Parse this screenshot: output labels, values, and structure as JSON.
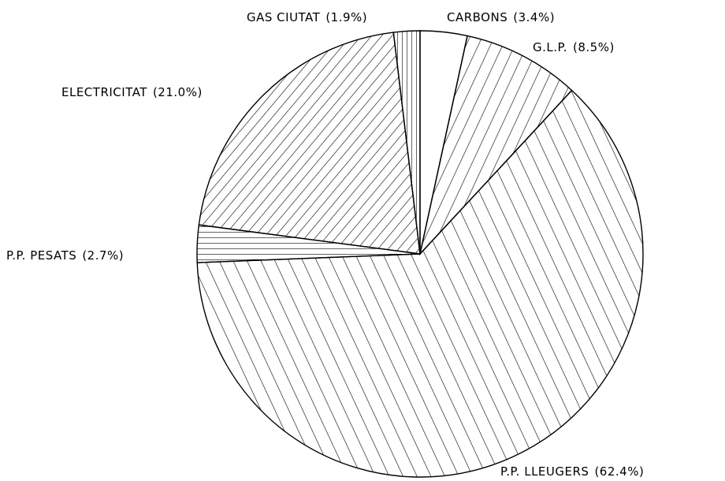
{
  "chart_data": {
    "type": "pie",
    "categories": [
      "CARBONS",
      "G.L.P.",
      "P.P. LLEUGERS",
      "P.P. PESATS",
      "ELECTRICITAT",
      "GAS CIUTAT"
    ],
    "values": [
      3.4,
      8.5,
      62.4,
      2.7,
      21.0,
      1.9
    ],
    "value_labels": [
      "(3.4%)",
      "(8.5%)",
      "(62.4%)",
      "(2.7%)",
      "(21.0%)",
      "(1.9%)"
    ],
    "patterns": [
      "none",
      "diag-up",
      "diag-down",
      "horizontal",
      "diag-up-dense",
      "vertical"
    ],
    "color": "#000000",
    "start_angle": 0,
    "direction": "clockwise"
  }
}
